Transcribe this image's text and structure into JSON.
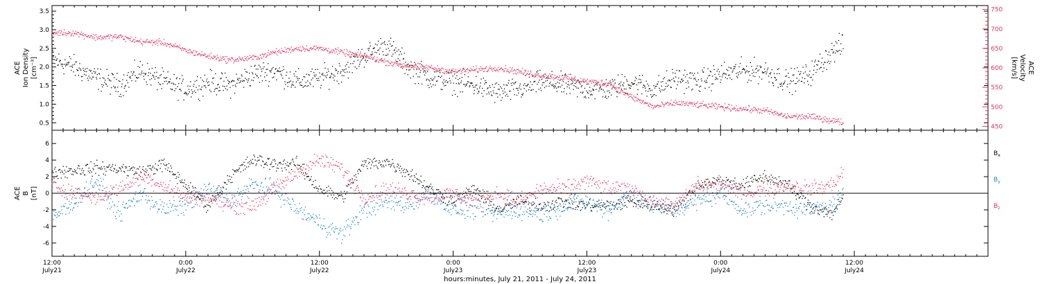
{
  "chart_data": [
    {
      "type": "scatter",
      "panel": "plasma",
      "ylabel_lines": [
        "ACE",
        "Ion Density",
        "[cm⁻³]"
      ],
      "ylim": [
        0.3,
        3.65
      ],
      "yticks": [
        "0.5",
        "1.0",
        "1.5",
        "2.0",
        "2.5",
        "3.0",
        "3.5"
      ],
      "ytick_values": [
        0.5,
        1.0,
        1.5,
        2.0,
        2.5,
        3.0,
        3.5
      ],
      "y2label_lines": [
        "ACE",
        "Velocity",
        "[km/s]"
      ],
      "y2lim": [
        440,
        760
      ],
      "y2ticks": [
        "450",
        "500",
        "550",
        "600",
        "650",
        "700",
        "750"
      ],
      "y2tick_values": [
        450,
        500,
        550,
        600,
        650,
        700,
        750
      ],
      "series": [
        {
          "axis": "left",
          "color": "#000000",
          "x_hours": [
            0,
            2,
            4,
            6,
            8,
            10,
            12,
            14,
            16,
            18,
            20,
            22,
            24,
            26,
            28,
            30,
            32,
            34,
            36,
            38,
            40,
            42,
            44,
            46,
            48,
            50,
            52,
            54,
            56,
            58,
            60,
            62,
            64,
            66,
            68,
            70,
            71
          ],
          "values": [
            2.2,
            2.0,
            1.7,
            1.5,
            1.9,
            1.6,
            1.4,
            1.6,
            1.5,
            1.8,
            1.9,
            1.6,
            1.7,
            1.9,
            2.3,
            2.6,
            2.0,
            1.7,
            1.6,
            1.5,
            1.3,
            1.4,
            1.6,
            1.5,
            1.4,
            1.4,
            1.6,
            1.4,
            1.7,
            1.6,
            1.8,
            1.9,
            1.9,
            1.6,
            1.8,
            2.4,
            2.6
          ],
          "spread": 0.45
        },
        {
          "axis": "right",
          "color": "#e8335f",
          "x_hours": [
            0,
            2,
            4,
            6,
            8,
            10,
            12,
            14,
            16,
            18,
            20,
            22,
            24,
            26,
            28,
            30,
            32,
            34,
            36,
            38,
            40,
            42,
            44,
            46,
            48,
            50,
            52,
            54,
            56,
            58,
            60,
            62,
            64,
            66,
            68,
            70,
            71
          ],
          "values": [
            690,
            690,
            678,
            680,
            667,
            665,
            645,
            630,
            620,
            625,
            640,
            650,
            650,
            640,
            630,
            615,
            605,
            600,
            590,
            595,
            600,
            590,
            580,
            575,
            565,
            560,
            525,
            500,
            510,
            505,
            500,
            495,
            490,
            475,
            475,
            465,
            460
          ],
          "spread": 12
        }
      ]
    },
    {
      "type": "scatter",
      "panel": "magnetic",
      "ylabel_lines": [
        "ACE",
        "B",
        "[nT]"
      ],
      "ylim": [
        -7.6,
        7.6
      ],
      "yticks": [
        "-6",
        "-4",
        "-2",
        "0",
        "2",
        "4",
        "6"
      ],
      "ytick_values": [
        -6,
        -4,
        -2,
        0,
        2,
        4,
        6
      ],
      "zero_line": true,
      "legend": [
        "Bx",
        "By",
        "Bz"
      ],
      "series": [
        {
          "name": "Bx",
          "color": "#000000",
          "x_hours": [
            0,
            2,
            4,
            6,
            8,
            10,
            12,
            14,
            16,
            18,
            20,
            22,
            24,
            26,
            28,
            30,
            32,
            34,
            36,
            38,
            40,
            42,
            44,
            46,
            48,
            50,
            52,
            54,
            56,
            58,
            60,
            62,
            64,
            66,
            68,
            70,
            71
          ],
          "values": [
            2.5,
            2.8,
            3.0,
            3.0,
            2.5,
            3.5,
            1.0,
            -1.5,
            2.0,
            4.0,
            3.5,
            3.5,
            0.5,
            -0.5,
            3.5,
            3.8,
            2.5,
            0.5,
            -1.0,
            0.5,
            -2.0,
            -1.0,
            -1.5,
            -1.0,
            -1.5,
            -1.5,
            -1.0,
            -1.5,
            -2.0,
            1.0,
            1.5,
            1.0,
            2.0,
            1.0,
            -1.5,
            -2.5,
            -0.5
          ],
          "spread": 1.2
        },
        {
          "name": "By",
          "color": "#1a7fd4",
          "x_hours": [
            0,
            2,
            4,
            6,
            8,
            10,
            12,
            14,
            16,
            18,
            20,
            22,
            24,
            26,
            28,
            30,
            32,
            34,
            36,
            38,
            40,
            42,
            44,
            46,
            48,
            50,
            52,
            54,
            56,
            58,
            60,
            62,
            64,
            66,
            68,
            70,
            71
          ],
          "values": [
            -3.0,
            -1.0,
            1.5,
            -2.5,
            0.0,
            -2.0,
            -1.5,
            0.5,
            -1.0,
            1.0,
            0.5,
            -2.0,
            -3.5,
            -5.0,
            -2.0,
            -1.0,
            -1.5,
            0.0,
            -2.0,
            -2.0,
            -2.5,
            -2.0,
            -2.5,
            -1.5,
            -1.0,
            -2.0,
            0.0,
            -1.5,
            -2.0,
            -1.0,
            0.0,
            -2.0,
            -1.5,
            -1.5,
            -2.0,
            -1.5,
            0.0
          ],
          "spread": 1.6
        },
        {
          "name": "Bz",
          "color": "#e8335f",
          "x_hours": [
            0,
            2,
            4,
            6,
            8,
            10,
            12,
            14,
            16,
            18,
            20,
            22,
            24,
            26,
            28,
            30,
            32,
            34,
            36,
            38,
            40,
            42,
            44,
            46,
            48,
            50,
            52,
            54,
            56,
            58,
            60,
            62,
            64,
            66,
            68,
            70,
            71
          ],
          "values": [
            1.0,
            0.0,
            -0.5,
            0.5,
            2.0,
            1.0,
            -0.5,
            -0.5,
            -1.5,
            -1.5,
            0.5,
            2.5,
            4.0,
            3.0,
            -0.5,
            0.5,
            0.0,
            -0.5,
            0.0,
            -1.0,
            0.0,
            -1.0,
            0.5,
            0.5,
            1.5,
            0.5,
            0.5,
            -1.0,
            -1.5,
            1.0,
            1.0,
            0.0,
            0.5,
            1.0,
            0.5,
            1.0,
            2.5
          ],
          "spread": 1.4
        }
      ]
    }
  ],
  "x_axis": {
    "tick_times": [
      "12:00",
      "0:00",
      "12:00",
      "0:00",
      "12:00",
      "0:00",
      "12:00"
    ],
    "tick_dates": [
      "July21",
      "July22",
      "July22",
      "July23",
      "July23",
      "July24",
      "July24"
    ],
    "tick_hours": [
      0,
      12,
      24,
      36,
      48,
      60,
      72
    ],
    "xlim_hours": [
      0,
      84
    ],
    "title": "hours:minutes, July 21, 2011 - July 24, 2011"
  },
  "legend_labels": {
    "bx": "B",
    "bx_sub": "x",
    "by": "B",
    "by_sub": "y",
    "bz": "B",
    "bz_sub": "z"
  },
  "colors": {
    "black": "#000000",
    "velocity": "#e8335f",
    "by": "#1a7fd4",
    "bz": "#e8335f"
  }
}
